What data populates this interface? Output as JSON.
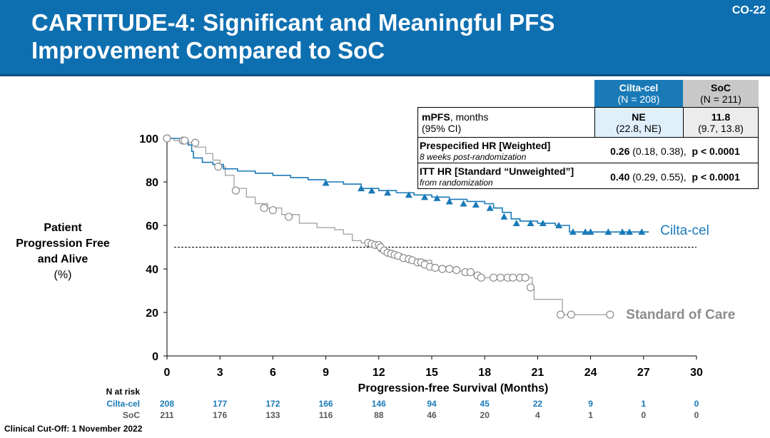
{
  "header": {
    "title_line1": "CARTITUDE-4: Significant and Meaningful PFS",
    "title_line2": "Improvement Compared to SoC",
    "slide_number": "CO-22"
  },
  "y_axis_label": {
    "line1": "Patient",
    "line2": "Progression Free",
    "line3": "and Alive",
    "unit": "(%)"
  },
  "stats_table": {
    "cilta_header": "Cilta-cel",
    "cilta_n": "(N = 208)",
    "soc_header": "SoC",
    "soc_n": "(N = 211)",
    "mpfs_label": "mPFS",
    "mpfs_unit": ", months",
    "ci_label": "(95% CI)",
    "cilta_mpfs": "NE",
    "cilta_ci": "(22.8, NE)",
    "soc_mpfs": "11.8",
    "soc_ci": "(9.7, 13.8)",
    "hr1_label": "Prespecified HR [Weighted]",
    "hr1_sub": "8 weeks post-randomization",
    "hr1_value": "0.26",
    "hr1_ci": " (0.18, 0.38),",
    "hr1_p": "p < 0.0001",
    "hr2_label": "ITT HR [Standard “Unweighted”]",
    "hr2_sub": "from randomization",
    "hr2_value": "0.40",
    "hr2_ci": " (0.29, 0.55),",
    "hr2_p": "p < 0.0001"
  },
  "footer": {
    "cutoff": "Clinical Cut-Off: 1 November 2022"
  },
  "colors": {
    "header": "#0e6fb0",
    "cilta": "#1a7ab8",
    "soc": "#a6a6a6",
    "soc_text": "#8c8c8c"
  },
  "chart_data": {
    "type": "line",
    "xlabel": "Progression-free Survival (Months)",
    "ylabel": "Patient Progression Free and Alive (%)",
    "xlim": [
      0,
      30
    ],
    "ylim": [
      0,
      100
    ],
    "x_ticks": [
      0,
      3,
      6,
      9,
      12,
      15,
      18,
      21,
      24,
      27,
      30
    ],
    "y_ticks": [
      0,
      20,
      40,
      60,
      80,
      100
    ],
    "reference_line": {
      "y": 50,
      "style": "dashed"
    },
    "series": [
      {
        "name": "Cilta-cel",
        "label": "Cilta-cel",
        "steps": [
          [
            0,
            100
          ],
          [
            0.8,
            99
          ],
          [
            1.2,
            97
          ],
          [
            1.4,
            94
          ],
          [
            1.5,
            91
          ],
          [
            2,
            89
          ],
          [
            2.6,
            88
          ],
          [
            3.2,
            86
          ],
          [
            4,
            85
          ],
          [
            5,
            84
          ],
          [
            6,
            83
          ],
          [
            7,
            82
          ],
          [
            8,
            81
          ],
          [
            9,
            80
          ],
          [
            10,
            79
          ],
          [
            11,
            77
          ],
          [
            12,
            76
          ],
          [
            13,
            75
          ],
          [
            14,
            74
          ],
          [
            15,
            73
          ],
          [
            16,
            72
          ],
          [
            17,
            71
          ],
          [
            18,
            70
          ],
          [
            18.5,
            68
          ],
          [
            19,
            66
          ],
          [
            19.5,
            63
          ],
          [
            20,
            62
          ],
          [
            21,
            61
          ],
          [
            22,
            60
          ],
          [
            22.8,
            57
          ],
          [
            27.3,
            57
          ]
        ],
        "censored": [
          [
            9,
            79.5
          ],
          [
            11,
            77
          ],
          [
            11.6,
            76
          ],
          [
            12.5,
            75
          ],
          [
            13.7,
            74
          ],
          [
            14.6,
            73
          ],
          [
            15.3,
            72.5
          ],
          [
            16,
            71
          ],
          [
            16.8,
            70
          ],
          [
            17.5,
            69.5
          ],
          [
            18.3,
            68
          ],
          [
            19.1,
            64
          ],
          [
            19.8,
            61
          ],
          [
            20.6,
            61
          ],
          [
            21.3,
            61
          ],
          [
            22.2,
            60
          ],
          [
            23,
            57
          ],
          [
            23.7,
            57
          ],
          [
            24,
            57
          ],
          [
            25,
            57
          ],
          [
            25.8,
            57
          ],
          [
            26.2,
            57
          ],
          [
            26.9,
            57
          ]
        ]
      },
      {
        "name": "SoC",
        "label": "Standard of Care",
        "steps": [
          [
            0,
            100
          ],
          [
            0.4,
            99
          ],
          [
            1,
            98
          ],
          [
            1.6,
            96
          ],
          [
            2.2,
            93
          ],
          [
            2.6,
            90
          ],
          [
            3,
            87
          ],
          [
            3.3,
            83
          ],
          [
            3.8,
            77
          ],
          [
            4.5,
            73
          ],
          [
            5,
            70
          ],
          [
            5.7,
            68
          ],
          [
            6.5,
            65
          ],
          [
            7.5,
            61
          ],
          [
            8.5,
            59
          ],
          [
            9.5,
            58
          ],
          [
            10,
            56
          ],
          [
            10.5,
            53
          ],
          [
            11,
            52
          ],
          [
            11.5,
            50
          ],
          [
            12,
            48
          ],
          [
            12.5,
            47
          ],
          [
            13.3,
            45
          ],
          [
            14,
            44
          ],
          [
            15,
            41
          ],
          [
            16,
            39
          ],
          [
            17,
            38
          ],
          [
            17.7,
            36
          ],
          [
            20.4,
            36
          ],
          [
            20.7,
            31
          ],
          [
            20.8,
            26
          ],
          [
            22.2,
            26
          ],
          [
            22.4,
            19
          ],
          [
            25.2,
            19
          ]
        ],
        "censored": [
          [
            0,
            100
          ],
          [
            0.9,
            99
          ],
          [
            1,
            99
          ],
          [
            1.6,
            98
          ],
          [
            2.9,
            87
          ],
          [
            3.9,
            76
          ],
          [
            5.5,
            68
          ],
          [
            6,
            67
          ],
          [
            6.9,
            64
          ],
          [
            11.4,
            52
          ],
          [
            11.6,
            51.5
          ],
          [
            11.8,
            51
          ],
          [
            12,
            51
          ],
          [
            12.1,
            50
          ],
          [
            12.3,
            48.5
          ],
          [
            12.5,
            47.5
          ],
          [
            12.7,
            47
          ],
          [
            12.9,
            46.5
          ],
          [
            13.1,
            46
          ],
          [
            13.4,
            45
          ],
          [
            13.7,
            44.5
          ],
          [
            13.9,
            44
          ],
          [
            14.2,
            43
          ],
          [
            14.4,
            43
          ],
          [
            14.6,
            42
          ],
          [
            14.9,
            41
          ],
          [
            15.2,
            40.5
          ],
          [
            15.6,
            40
          ],
          [
            16,
            40
          ],
          [
            16.4,
            39.5
          ],
          [
            16.9,
            38.5
          ],
          [
            17.2,
            38.5
          ],
          [
            17.6,
            37
          ],
          [
            17.8,
            36
          ],
          [
            18.5,
            36
          ],
          [
            18.9,
            36
          ],
          [
            19.3,
            36
          ],
          [
            19.6,
            36
          ],
          [
            20,
            36
          ],
          [
            20.3,
            36
          ],
          [
            20.6,
            31.5
          ],
          [
            22.3,
            19
          ],
          [
            22.9,
            19
          ],
          [
            25.1,
            19
          ]
        ]
      }
    ],
    "risk_table": {
      "title": "N at risk",
      "cilta_label": "Cilta-cel",
      "soc_label": "SoC",
      "cilta": [
        208,
        177,
        172,
        166,
        146,
        94,
        45,
        22,
        9,
        1,
        0
      ],
      "soc": [
        211,
        176,
        133,
        116,
        88,
        46,
        20,
        4,
        1,
        0,
        0
      ]
    }
  }
}
